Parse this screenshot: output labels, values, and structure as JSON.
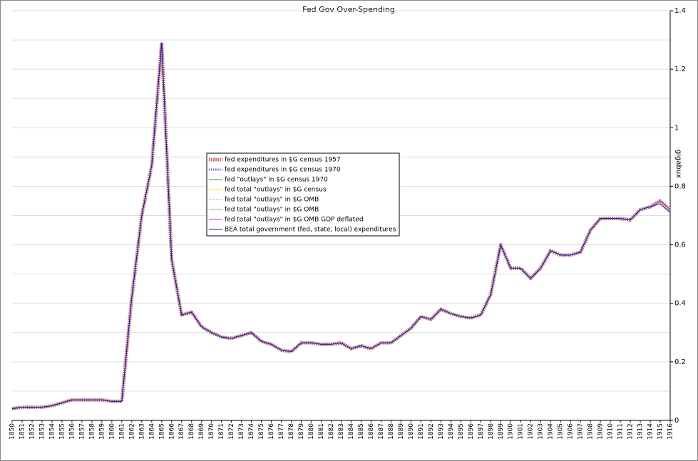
{
  "chart_data": {
    "type": "line",
    "title": "Fed Gov Over-Spending",
    "y_label": "gigabux",
    "x": [
      1850,
      1851,
      1852,
      1853,
      1854,
      1855,
      1856,
      1857,
      1858,
      1859,
      1860,
      1861,
      1862,
      1863,
      1864,
      1865,
      1866,
      1867,
      1868,
      1869,
      1870,
      1871,
      1872,
      1873,
      1874,
      1875,
      1876,
      1877,
      1878,
      1879,
      1880,
      1881,
      1882,
      1883,
      1884,
      1885,
      1886,
      1887,
      1888,
      1889,
      1890,
      1891,
      1892,
      1893,
      1894,
      1895,
      1896,
      1897,
      1898,
      1899,
      1900,
      1901,
      1902,
      1903,
      1904,
      1905,
      1906,
      1907,
      1908,
      1909,
      1910,
      1911,
      1912,
      1913,
      1914,
      1915,
      1916
    ],
    "xlim": [
      1850,
      1916
    ],
    "ylim": [
      0,
      1.4
    ],
    "yticks": [
      0,
      0.2,
      0.4,
      0.6,
      0.8,
      1,
      1.2,
      1.4
    ],
    "minor_yticks": [
      0.1,
      0.3,
      0.5,
      0.7,
      0.9,
      1.1,
      1.3
    ],
    "grid": true,
    "legend": "center-left",
    "series": [
      {
        "name": "fed expenditures in $G census 1957",
        "color": "#d97a7a",
        "width": 5,
        "dash": "2 1",
        "values": [
          0.04,
          0.045,
          0.045,
          0.045,
          0.05,
          0.06,
          0.07,
          0.07,
          0.07,
          0.07,
          0.065,
          0.065,
          0.42,
          0.7,
          0.87,
          1.29,
          0.55,
          0.36,
          0.37,
          0.32,
          0.3,
          0.285,
          0.28,
          0.29,
          0.3,
          0.27,
          0.26,
          0.24,
          0.235,
          0.265,
          0.265,
          0.26,
          0.26,
          0.265,
          0.245,
          0.255,
          0.245,
          0.265,
          0.265,
          0.29,
          0.315,
          0.355,
          0.345,
          0.38,
          0.365,
          0.355,
          0.35,
          0.36,
          0.43,
          0.6,
          0.52,
          0.52,
          0.485,
          0.52,
          0.58,
          0.565,
          0.565,
          0.575,
          0.65,
          0.69,
          0.69,
          0.69,
          0.685,
          0.72,
          0.73,
          0.75,
          0.72
        ]
      },
      {
        "name": "fed expenditures in $G census 1970",
        "color": "#7070c8",
        "width": 3,
        "dash": "1.5 1.5",
        "values": [
          0.04,
          0.045,
          0.045,
          0.045,
          0.05,
          0.06,
          0.07,
          0.07,
          0.07,
          0.07,
          0.065,
          0.065,
          0.42,
          0.7,
          0.87,
          1.29,
          0.55,
          0.36,
          0.37,
          0.32,
          0.3,
          0.285,
          0.28,
          0.29,
          0.3,
          0.27,
          0.26,
          0.24,
          0.235,
          0.265,
          0.265,
          0.26,
          0.26,
          0.265,
          0.245,
          0.255,
          0.245,
          0.265,
          0.265,
          0.29,
          0.315,
          0.355,
          0.345,
          0.38,
          0.365,
          0.355,
          0.35,
          0.36,
          0.43,
          0.6,
          0.52,
          0.52,
          0.485,
          0.52,
          0.58,
          0.565,
          0.565,
          0.575,
          0.65,
          0.69,
          0.69,
          0.69,
          0.685,
          0.72,
          0.73,
          0.75,
          0.72
        ]
      },
      {
        "name": "fed \"outlays\" in $G census 1970",
        "color": "#2a9a2a",
        "width": 1,
        "dash": "",
        "values": [
          0.04,
          0.045,
          0.045,
          0.045,
          0.05,
          0.06,
          0.07,
          0.07,
          0.07,
          0.07,
          0.065,
          0.065,
          0.42,
          0.7,
          0.87,
          1.29,
          0.55,
          0.36,
          0.37,
          0.32,
          0.3,
          0.285,
          0.28,
          0.29,
          0.3,
          0.27,
          0.26,
          0.24,
          0.235,
          0.265,
          0.265,
          0.26,
          0.26,
          0.265,
          0.245,
          0.255,
          0.245,
          0.265,
          0.265,
          0.29,
          0.315,
          0.355,
          0.345,
          0.38,
          0.365,
          0.355,
          0.35,
          0.36,
          0.43,
          0.6,
          0.52,
          0.52,
          0.485,
          0.52,
          0.58,
          0.565,
          0.565,
          0.575,
          0.65,
          0.69,
          0.69,
          0.69,
          0.685,
          0.72,
          0.73,
          0.75,
          0.72
        ]
      },
      {
        "name": "fed total \"outlays\" in $G census",
        "color": "#e8e830",
        "width": 1,
        "dash": "",
        "values": [
          0.04,
          0.045,
          0.045,
          0.045,
          0.05,
          0.06,
          0.07,
          0.07,
          0.07,
          0.07,
          0.065,
          0.065,
          0.42,
          0.7,
          0.87,
          1.29,
          0.55,
          0.36,
          0.37,
          0.32,
          0.3,
          0.285,
          0.28,
          0.29,
          0.3,
          0.27,
          0.26,
          0.24,
          0.235,
          0.265,
          0.265,
          0.26,
          0.26,
          0.265,
          0.245,
          0.255,
          0.245,
          0.265,
          0.265,
          0.29,
          0.315,
          0.355,
          0.345,
          0.38,
          0.365,
          0.355,
          0.35,
          0.36,
          0.43,
          0.6,
          0.52,
          0.52,
          0.485,
          0.52,
          0.58,
          0.565,
          0.565,
          0.575,
          0.65,
          0.69,
          0.69,
          0.69,
          0.685,
          0.72,
          0.73,
          0.75,
          0.72
        ]
      },
      {
        "name": "fed total \"outlays\" in $G OMB",
        "color": "#e09040",
        "width": 1,
        "dash": "1 1",
        "values": [
          0.04,
          0.045,
          0.045,
          0.045,
          0.05,
          0.06,
          0.07,
          0.07,
          0.07,
          0.07,
          0.065,
          0.065,
          0.42,
          0.7,
          0.87,
          1.29,
          0.55,
          0.36,
          0.37,
          0.32,
          0.3,
          0.285,
          0.28,
          0.29,
          0.3,
          0.27,
          0.26,
          0.24,
          0.235,
          0.265,
          0.265,
          0.26,
          0.26,
          0.265,
          0.245,
          0.255,
          0.245,
          0.265,
          0.265,
          0.29,
          0.315,
          0.355,
          0.345,
          0.38,
          0.365,
          0.355,
          0.35,
          0.36,
          0.43,
          0.6,
          0.52,
          0.52,
          0.485,
          0.52,
          0.58,
          0.565,
          0.565,
          0.575,
          0.65,
          0.69,
          0.69,
          0.69,
          0.685,
          0.72,
          0.73,
          0.75,
          0.72
        ]
      },
      {
        "name": "fed total \"outlays\" in $G OMB",
        "color": "#a0a0a0",
        "width": 1,
        "dash": "",
        "values": [
          0.04,
          0.045,
          0.045,
          0.045,
          0.05,
          0.06,
          0.07,
          0.07,
          0.07,
          0.07,
          0.065,
          0.065,
          0.42,
          0.7,
          0.87,
          1.29,
          0.55,
          0.36,
          0.37,
          0.32,
          0.3,
          0.285,
          0.28,
          0.29,
          0.3,
          0.27,
          0.26,
          0.24,
          0.235,
          0.265,
          0.265,
          0.26,
          0.26,
          0.265,
          0.245,
          0.255,
          0.245,
          0.265,
          0.265,
          0.29,
          0.315,
          0.355,
          0.345,
          0.38,
          0.365,
          0.355,
          0.35,
          0.36,
          0.43,
          0.6,
          0.52,
          0.52,
          0.485,
          0.52,
          0.58,
          0.565,
          0.565,
          0.575,
          0.65,
          0.69,
          0.69,
          0.69,
          0.685,
          0.72,
          0.73,
          0.75,
          0.72
        ]
      },
      {
        "name": "fed total \"outlays\" in $G OMB GDP deflated",
        "color": "#d030d0",
        "width": 1,
        "dash": "",
        "values": [
          0.04,
          0.045,
          0.045,
          0.045,
          0.05,
          0.06,
          0.07,
          0.07,
          0.07,
          0.07,
          0.065,
          0.065,
          0.42,
          0.7,
          0.87,
          1.29,
          0.55,
          0.36,
          0.37,
          0.32,
          0.3,
          0.285,
          0.28,
          0.29,
          0.3,
          0.27,
          0.26,
          0.24,
          0.235,
          0.265,
          0.265,
          0.26,
          0.26,
          0.265,
          0.245,
          0.255,
          0.245,
          0.265,
          0.265,
          0.29,
          0.315,
          0.355,
          0.345,
          0.38,
          0.365,
          0.355,
          0.35,
          0.36,
          0.43,
          0.6,
          0.52,
          0.52,
          0.485,
          0.52,
          0.58,
          0.565,
          0.565,
          0.575,
          0.65,
          0.69,
          0.69,
          0.69,
          0.685,
          0.72,
          0.73,
          0.75,
          0.72
        ]
      },
      {
        "name": "BEA total government (fed, state, local) expenditures",
        "color": "#1a1a80",
        "width": 1,
        "dash": "",
        "values": [
          0.04,
          0.045,
          0.045,
          0.045,
          0.05,
          0.06,
          0.07,
          0.07,
          0.07,
          0.07,
          0.065,
          0.065,
          0.42,
          0.7,
          0.87,
          1.29,
          0.55,
          0.36,
          0.37,
          0.32,
          0.3,
          0.285,
          0.28,
          0.29,
          0.3,
          0.27,
          0.26,
          0.24,
          0.235,
          0.265,
          0.265,
          0.26,
          0.26,
          0.265,
          0.245,
          0.255,
          0.245,
          0.265,
          0.265,
          0.29,
          0.315,
          0.355,
          0.345,
          0.38,
          0.365,
          0.355,
          0.35,
          0.36,
          0.43,
          0.6,
          0.52,
          0.52,
          0.485,
          0.52,
          0.58,
          0.565,
          0.565,
          0.575,
          0.65,
          0.69,
          0.69,
          0.69,
          0.685,
          0.72,
          0.73,
          0.74,
          0.71
        ]
      }
    ]
  }
}
